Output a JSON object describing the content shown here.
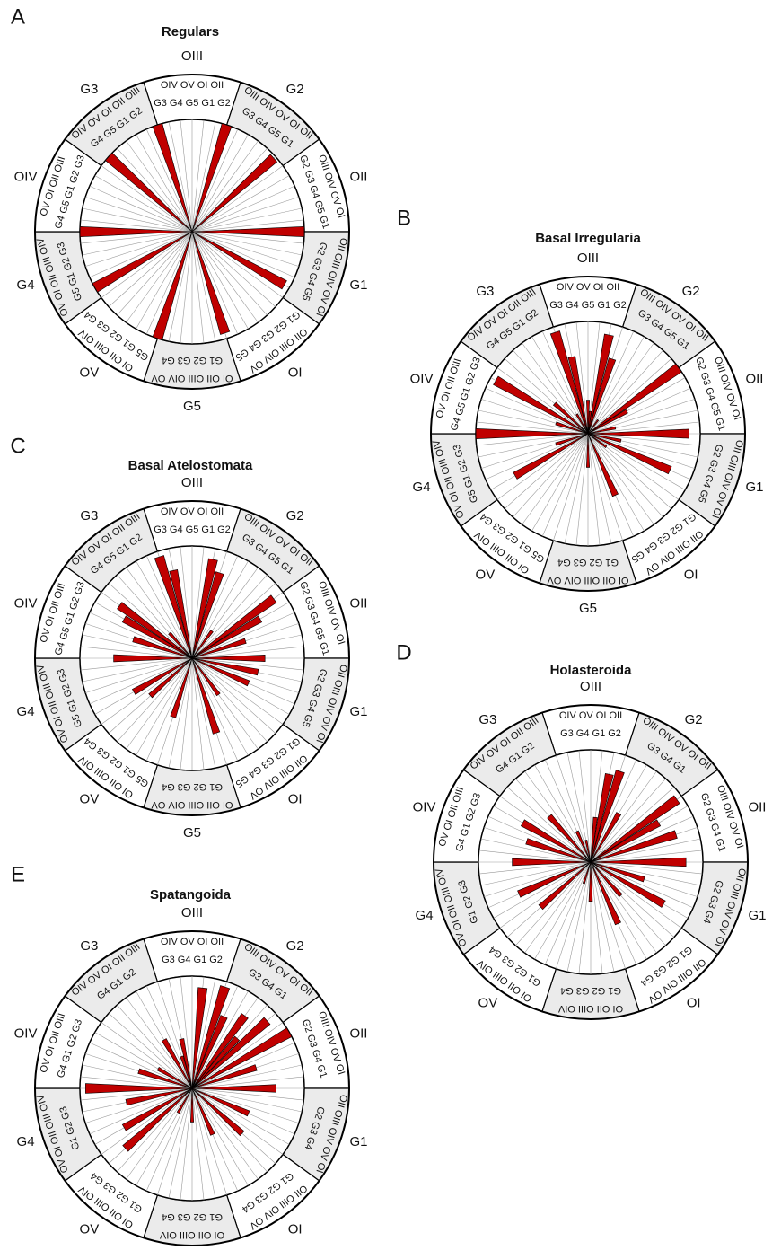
{
  "panels": [
    {
      "letter": "A",
      "title": "Regulars",
      "outer": [
        "OIII",
        "G2",
        "OII",
        "G1",
        "OI",
        "G5",
        "OV",
        "G4",
        "OIV",
        "G3"
      ],
      "ring": [
        [
          "OIV OV OI OII",
          "G3 G4 G5 G1 G2"
        ],
        [
          "OIII OIV OV OI OII",
          "G3 G4 G5 G1"
        ],
        [
          "OIII OIV OV OI",
          "G2 G3 G4 G5 G1"
        ],
        [
          "OII OIII OIV OV OI",
          "G2 G3 G4 G5"
        ],
        [
          "OII OIII OIV OV",
          "G1 G2 G3 G4 G5"
        ],
        [
          "OI OII OIII OIV OV",
          "G1 G2 G3 G4"
        ],
        [
          "OI OII OIII OIV",
          "G5 G1 G2 G3 G4"
        ],
        [
          "OV OI OII OIII OIV",
          "G5 G1 G2 G3"
        ],
        [
          "OV OI OII OIII",
          "G4 G5 G1 G2 G3"
        ],
        [
          "OIV OV OI OII OIII",
          "G4 G5 G1 G2"
        ]
      ],
      "values": [
        0,
        0,
        0,
        1,
        0,
        0,
        0,
        0,
        0.98,
        0,
        0,
        0,
        0,
        0,
        0,
        1,
        0,
        0,
        0,
        0,
        0.95,
        0,
        0,
        0,
        0,
        0,
        0,
        0.95,
        0,
        0,
        0,
        0,
        0,
        1,
        0,
        0,
        0,
        0,
        0,
        0,
        1,
        0,
        0,
        0,
        0,
        1,
        0,
        0,
        0,
        0,
        0,
        0,
        1,
        0,
        0,
        0,
        0,
        1,
        0,
        0
      ]
    },
    {
      "letter": "B",
      "title": "Basal Irregularia",
      "outer": [
        "OIII",
        "G2",
        "OII",
        "G1",
        "OI",
        "G5",
        "OV",
        "G4",
        "OIV",
        "G3"
      ],
      "ring": [
        [
          "OIV OV OI OII",
          "G3 G4 G5 G1 G2"
        ],
        [
          "OIII OIV OV OI OII",
          "G3 G4 G5 G1"
        ],
        [
          "OIII OIV OV OI",
          "G2 G3 G4 G5 G1"
        ],
        [
          "OII OIII OIV OV OI",
          "G2 G3 G4 G5"
        ],
        [
          "OII OIII OIV OV",
          "G1 G2 G3 G4 G5"
        ],
        [
          "OI OII OIII OIV OV",
          "G1 G2 G3 G4"
        ],
        [
          "OI OII OIII OIV",
          "G5 G1 G2 G3 G4"
        ],
        [
          "OV OI OII OIII OIV",
          "G5 G1 G2 G3"
        ],
        [
          "OV OI OII OIII",
          "G4 G5 G1 G2 G3"
        ],
        [
          "OIV OV OI OII OIII",
          "G4 G5 G1 G2"
        ]
      ],
      "values": [
        0.3,
        0.2,
        0.9,
        0.7,
        0,
        0,
        0.15,
        0,
        0,
        1,
        0.4,
        0,
        0,
        0.25,
        0,
        0.9,
        0,
        0.3,
        0,
        0.8,
        0,
        0.2,
        0,
        0,
        0,
        0,
        0.6,
        0,
        0,
        0,
        0.3,
        0,
        0,
        0,
        0,
        0,
        0,
        0,
        0,
        0,
        0.75,
        0,
        0.3,
        0,
        0,
        1,
        0,
        0,
        0.3,
        0,
        0.95,
        0,
        0.4,
        0,
        0,
        0.2,
        0,
        0.95,
        0.7,
        0
      ]
    },
    {
      "letter": "C",
      "title": "Basal Atelostomata",
      "outer": [
        "OIII",
        "G2",
        "OII",
        "G1",
        "OI",
        "G5",
        "OV",
        "G4",
        "OIV",
        "G3"
      ],
      "ring": [
        [
          "OIV OV OI OII",
          "G3 G4 G5 G1 G2"
        ],
        [
          "OIII OIV OV OI OII",
          "G3 G4 G5 G1"
        ],
        [
          "OIII OIV OV OI",
          "G2 G3 G4 G5 G1"
        ],
        [
          "OII OIII OIV OV OI",
          "G2 G3 G4 G5"
        ],
        [
          "OII OIII OIV OV",
          "G1 G2 G3 G4 G5"
        ],
        [
          "OI OII OIII OIV OV",
          "G1 G2 G3 G4"
        ],
        [
          "OI OII OIII OIV",
          "G5 G1 G2 G3 G4"
        ],
        [
          "OV OI OII OIII OIV",
          "G5 G1 G2 G3"
        ],
        [
          "OV OI OII OIII",
          "G4 G5 G1 G2 G3"
        ],
        [
          "OIV OV OI OII OIII",
          "G4 G5 G1 G2"
        ]
      ],
      "values": [
        0,
        0,
        0.9,
        0.8,
        0,
        0,
        0.3,
        0,
        0,
        0.9,
        0.7,
        0,
        0.5,
        0,
        0,
        0.65,
        0,
        0.6,
        0,
        0.55,
        0,
        0,
        0,
        0,
        0.4,
        0,
        0,
        0.7,
        0,
        0,
        0,
        0,
        0,
        0.55,
        0,
        0,
        0,
        0,
        0.5,
        0,
        0.6,
        0,
        0,
        0,
        0,
        0.7,
        0,
        0,
        0.55,
        0,
        0.7,
        0.8,
        0,
        0.3,
        0,
        0,
        0,
        0.95,
        0.8,
        0
      ]
    },
    {
      "letter": "D",
      "title": "Holasteroida",
      "outer": [
        "OIII",
        "G2",
        "OII",
        "G1",
        "OI",
        null,
        "OV",
        "G4",
        "OIV",
        "G3"
      ],
      "ring": [
        [
          "OIV OV OI OII",
          "G3 G4 G1 G2"
        ],
        [
          "OIII OIV OV OI OII",
          "G3 G4 G1"
        ],
        [
          "OIII OIV OV OI",
          "G2 G3 G4 G1"
        ],
        [
          "OII OIII OIV OV OI",
          "G2 G3 G4"
        ],
        [
          "OII OIII OIV OV",
          "G1 G2 G3 G4"
        ],
        [
          "OI OII OIII OIV",
          "G1 G2 G3 G4"
        ],
        [
          "OI OII OIII OIV",
          "G1 G2 G3 G4"
        ],
        [
          "OV OI OII OIII OIV",
          "G1 G2 G3"
        ],
        [
          "OV OI OII OIII",
          "G4 G1 G2 G3"
        ],
        [
          "OIV OV OI OII OIII",
          "G4 G1 G2"
        ]
      ],
      "values": [
        0,
        0.4,
        0.8,
        0.85,
        0,
        0.5,
        0,
        0,
        0,
        0.95,
        0.7,
        0,
        0.8,
        0,
        0,
        0.85,
        0,
        0,
        0.5,
        0,
        0.75,
        0,
        0,
        0.4,
        0,
        0,
        0.6,
        0,
        0,
        0,
        0.35,
        0,
        0,
        0.2,
        0,
        0,
        0,
        0,
        0.6,
        0,
        0,
        0.7,
        0,
        0,
        0,
        0.7,
        0,
        0,
        0.6,
        0,
        0.7,
        0,
        0,
        0.55,
        0,
        0,
        0.3,
        0,
        0.2,
        0
      ]
    },
    {
      "letter": "E",
      "title": "Spatangoida",
      "outer": [
        "OIII",
        "G2",
        "OII",
        "G1",
        "OI",
        null,
        "OV",
        "G4",
        "OIV",
        "G3"
      ],
      "ring": [
        [
          "OIV OV OI OII",
          "G3 G4 G1 G2"
        ],
        [
          "OIII OIV OV OI OII",
          "G3 G4 G1"
        ],
        [
          "OIII OIV OV OI",
          "G2 G3 G4 G1"
        ],
        [
          "OII OIII OIV OV OI",
          "G2 G3 G4"
        ],
        [
          "OII OIII OIV OV",
          "G1 G2 G3 G4"
        ],
        [
          "OI OII OIII OIV",
          "G1 G2 G3 G4"
        ],
        [
          "OI OII OIII OIV",
          "G1 G2 G3 G4"
        ],
        [
          "OV OI OII OIII OIV",
          "G1 G2 G3"
        ],
        [
          "OV OI OII OIII",
          "G4 G1 G2 G3"
        ],
        [
          "OIV OV OI OII OIII",
          "G4 G1 G2"
        ]
      ],
      "values": [
        0,
        0.9,
        0,
        0.95,
        0.7,
        0,
        0.8,
        0.6,
        0.9,
        0,
        1,
        0,
        0.6,
        0,
        0,
        0.75,
        0,
        0,
        0,
        0.55,
        0,
        0,
        0.6,
        0,
        0,
        0,
        0.45,
        0,
        0,
        0,
        0.3,
        0,
        0,
        0,
        0,
        0.25,
        0,
        0,
        0.8,
        0,
        0.7,
        0,
        0,
        0.6,
        0,
        0.95,
        0,
        0,
        0.5,
        0,
        0.35,
        0,
        0,
        0,
        0,
        0.5,
        0,
        0.3,
        0.45,
        0
      ]
    }
  ]
}
